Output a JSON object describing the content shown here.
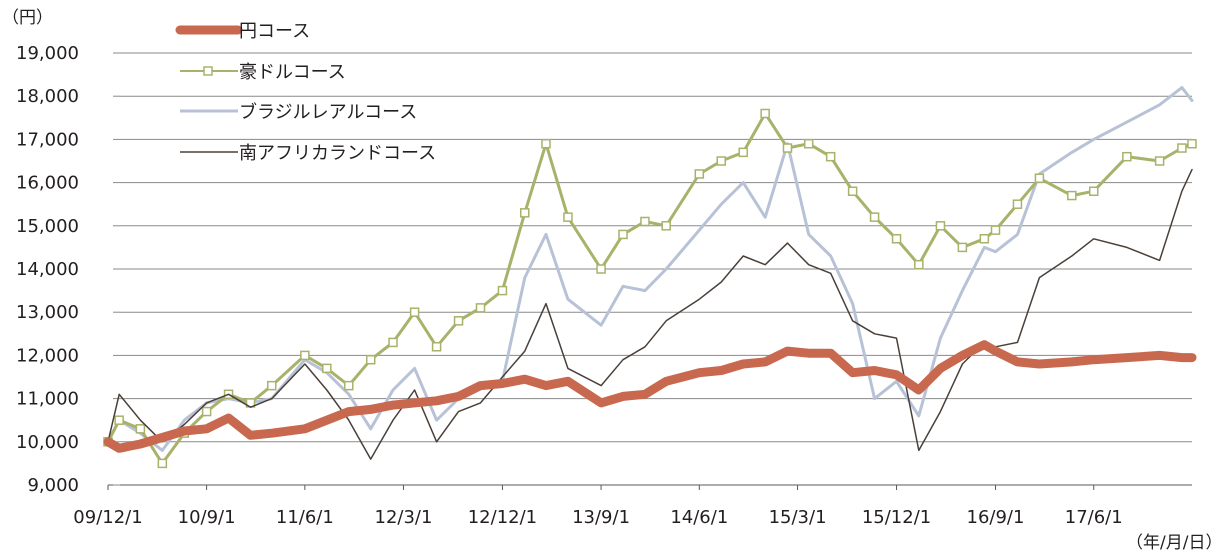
{
  "chart_data": {
    "type": "line",
    "y_unit_label": "（円）",
    "x_unit_label": "（年/月/日）",
    "ylim": [
      9000,
      19000
    ],
    "ytick_values": [
      9000,
      10000,
      11000,
      12000,
      13000,
      14000,
      15000,
      16000,
      17000,
      18000,
      19000
    ],
    "ytick_labels": [
      "9,000",
      "10,000",
      "11,000",
      "12,000",
      "13,000",
      "14,000",
      "15,000",
      "16,000",
      "17,000",
      "18,000",
      "19,000"
    ],
    "xlim": [
      "2009-12-01",
      "2018-03-01"
    ],
    "xtick_values": [
      "2009-12-01",
      "2010-09-01",
      "2011-06-01",
      "2012-03-01",
      "2012-12-01",
      "2013-09-01",
      "2014-06-01",
      "2015-03-01",
      "2015-12-01",
      "2016-09-01",
      "2017-06-01"
    ],
    "xtick_labels": [
      "09/12/1",
      "10/9/1",
      "11/6/1",
      "12/3/1",
      "12/12/1",
      "13/9/1",
      "14/6/1",
      "15/3/1",
      "15/12/1",
      "16/9/1",
      "17/6/1"
    ],
    "grid": true,
    "legend_position": "top-left",
    "series": [
      {
        "name": "円コース",
        "color": "#c8694f",
        "style": "thick",
        "x": [
          "2009-12-01",
          "2010-01-01",
          "2010-03-01",
          "2010-05-01",
          "2010-07-01",
          "2010-09-01",
          "2010-11-01",
          "2011-01-01",
          "2011-03-01",
          "2011-06-01",
          "2011-08-01",
          "2011-10-01",
          "2011-12-01",
          "2012-02-01",
          "2012-04-01",
          "2012-06-01",
          "2012-08-01",
          "2012-10-01",
          "2012-12-01",
          "2013-02-01",
          "2013-04-01",
          "2013-06-01",
          "2013-09-01",
          "2013-11-01",
          "2014-01-01",
          "2014-03-01",
          "2014-06-01",
          "2014-08-01",
          "2014-10-01",
          "2014-12-01",
          "2015-02-01",
          "2015-04-01",
          "2015-06-01",
          "2015-08-01",
          "2015-10-01",
          "2015-12-01",
          "2016-02-01",
          "2016-04-01",
          "2016-06-01",
          "2016-08-01",
          "2016-09-01",
          "2016-11-01",
          "2017-01-01",
          "2017-04-01",
          "2017-06-01",
          "2017-09-01",
          "2017-12-01",
          "2018-02-01",
          "2018-03-01"
        ],
        "y": [
          10000,
          9850,
          9950,
          10100,
          10250,
          10300,
          10550,
          10150,
          10200,
          10300,
          10500,
          10700,
          10750,
          10850,
          10900,
          10950,
          11050,
          11300,
          11350,
          11450,
          11300,
          11400,
          10900,
          11050,
          11100,
          11400,
          11600,
          11650,
          11800,
          11850,
          12100,
          12050,
          12050,
          11600,
          11650,
          11550,
          11200,
          11700,
          12000,
          12250,
          12100,
          11850,
          11800,
          11850,
          11900,
          11950,
          12000,
          11950,
          11950
        ]
      },
      {
        "name": "豪ドルコース",
        "color": "#a8b26a",
        "style": "square-marker",
        "x": [
          "2009-12-01",
          "2010-01-01",
          "2010-03-01",
          "2010-05-01",
          "2010-07-01",
          "2010-09-01",
          "2010-11-01",
          "2011-01-01",
          "2011-03-01",
          "2011-06-01",
          "2011-08-01",
          "2011-10-01",
          "2011-12-01",
          "2012-02-01",
          "2012-04-01",
          "2012-06-01",
          "2012-08-01",
          "2012-10-01",
          "2012-12-01",
          "2013-02-01",
          "2013-04-01",
          "2013-06-01",
          "2013-09-01",
          "2013-11-01",
          "2014-01-01",
          "2014-03-01",
          "2014-06-01",
          "2014-08-01",
          "2014-10-01",
          "2014-12-01",
          "2015-02-01",
          "2015-04-01",
          "2015-06-01",
          "2015-08-01",
          "2015-10-01",
          "2015-12-01",
          "2016-02-01",
          "2016-04-01",
          "2016-06-01",
          "2016-08-01",
          "2016-09-01",
          "2016-11-01",
          "2017-01-01",
          "2017-04-01",
          "2017-06-01",
          "2017-09-01",
          "2017-12-01",
          "2018-02-01",
          "2018-03-01"
        ],
        "y": [
          10000,
          10500,
          10300,
          9500,
          10200,
          10700,
          11100,
          10900,
          11300,
          12000,
          11700,
          11300,
          11900,
          12300,
          13000,
          12200,
          12800,
          13100,
          13500,
          15300,
          16900,
          15200,
          14000,
          14800,
          15100,
          15000,
          16200,
          16500,
          16700,
          17600,
          16800,
          16900,
          16600,
          15800,
          15200,
          14700,
          14100,
          15000,
          14500,
          14700,
          14900,
          15500,
          16100,
          15700,
          15800,
          16600,
          16500,
          16800,
          16900
        ]
      },
      {
        "name": "ブラジルレアルコース",
        "color": "#b8c2d6",
        "style": "thin",
        "x": [
          "2009-12-01",
          "2010-01-01",
          "2010-03-01",
          "2010-05-01",
          "2010-07-01",
          "2010-09-01",
          "2010-11-01",
          "2011-01-01",
          "2011-03-01",
          "2011-06-01",
          "2011-08-01",
          "2011-10-01",
          "2011-12-01",
          "2012-02-01",
          "2012-04-01",
          "2012-06-01",
          "2012-08-01",
          "2012-10-01",
          "2012-12-01",
          "2013-02-01",
          "2013-04-01",
          "2013-06-01",
          "2013-09-01",
          "2013-11-01",
          "2014-01-01",
          "2014-03-01",
          "2014-06-01",
          "2014-08-01",
          "2014-10-01",
          "2014-12-01",
          "2015-02-01",
          "2015-04-01",
          "2015-06-01",
          "2015-08-01",
          "2015-10-01",
          "2015-12-01",
          "2016-02-01",
          "2016-04-01",
          "2016-06-01",
          "2016-08-01",
          "2016-09-01",
          "2016-11-01",
          "2017-01-01",
          "2017-04-01",
          "2017-06-01",
          "2017-09-01",
          "2017-12-01",
          "2018-02-01",
          "2018-03-01"
        ],
        "y": [
          10000,
          10500,
          10200,
          9800,
          10500,
          10900,
          11000,
          10900,
          11000,
          11900,
          11600,
          11100,
          10300,
          11200,
          11700,
          10500,
          11000,
          11300,
          11400,
          13800,
          14800,
          13300,
          12700,
          13600,
          13500,
          14000,
          14900,
          15500,
          16000,
          15200,
          16900,
          14800,
          14300,
          13200,
          11000,
          11400,
          10600,
          12400,
          13500,
          14500,
          14400,
          14800,
          16200,
          16700,
          17000,
          17400,
          17800,
          18200,
          17900
        ]
      },
      {
        "name": "南アフリカランドコース",
        "color": "#4a403a",
        "style": "thin",
        "x": [
          "2009-12-01",
          "2010-01-01",
          "2010-03-01",
          "2010-05-01",
          "2010-07-01",
          "2010-09-01",
          "2010-11-01",
          "2011-01-01",
          "2011-03-01",
          "2011-06-01",
          "2011-08-01",
          "2011-10-01",
          "2011-12-01",
          "2012-02-01",
          "2012-04-01",
          "2012-06-01",
          "2012-08-01",
          "2012-10-01",
          "2012-12-01",
          "2013-02-01",
          "2013-04-01",
          "2013-06-01",
          "2013-09-01",
          "2013-11-01",
          "2014-01-01",
          "2014-03-01",
          "2014-06-01",
          "2014-08-01",
          "2014-10-01",
          "2014-12-01",
          "2015-02-01",
          "2015-04-01",
          "2015-06-01",
          "2015-08-01",
          "2015-10-01",
          "2015-12-01",
          "2016-02-01",
          "2016-04-01",
          "2016-06-01",
          "2016-08-01",
          "2016-09-01",
          "2016-11-01",
          "2017-01-01",
          "2017-04-01",
          "2017-06-01",
          "2017-09-01",
          "2017-12-01",
          "2018-02-01",
          "2018-03-01"
        ],
        "y": [
          10000,
          11100,
          10500,
          10000,
          10400,
          10900,
          11100,
          10800,
          11000,
          11800,
          11200,
          10500,
          9600,
          10500,
          11200,
          10000,
          10700,
          10900,
          11500,
          12100,
          13200,
          11700,
          11300,
          11900,
          12200,
          12800,
          13300,
          13700,
          14300,
          14100,
          14600,
          14100,
          13900,
          12800,
          12500,
          12400,
          9800,
          10700,
          11800,
          12300,
          12200,
          12300,
          13800,
          14300,
          14700,
          14500,
          14200,
          15800,
          16300
        ]
      }
    ]
  }
}
